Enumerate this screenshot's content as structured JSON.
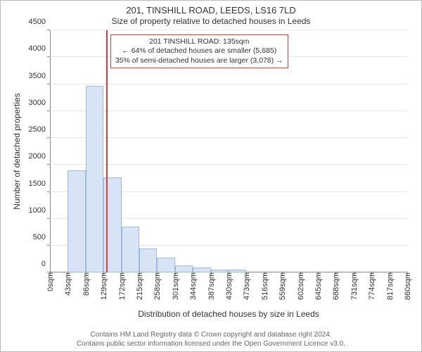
{
  "title": "201, TINSHILL ROAD, LEEDS, LS16 7LD",
  "subtitle": "Size of property relative to detached houses in Leeds",
  "chart": {
    "type": "histogram",
    "ylabel": "Number of detached properties",
    "xlabel": "Distribution of detached houses by size in Leeds",
    "y_max": 4500,
    "y_ticks": [
      0,
      500,
      1000,
      1500,
      2000,
      2500,
      3000,
      3500,
      4000,
      4500
    ],
    "bin_width_sqm": 43,
    "bins": [
      0,
      43,
      86,
      129,
      172,
      215,
      258,
      301,
      344,
      387,
      430,
      473,
      516,
      559,
      602,
      645,
      688,
      731,
      774,
      817,
      860
    ],
    "x_tick_labels": [
      "0sqm",
      "43sqm",
      "86sqm",
      "129sqm",
      "172sqm",
      "215sqm",
      "258sqm",
      "301sqm",
      "344sqm",
      "387sqm",
      "430sqm",
      "473sqm",
      "516sqm",
      "559sqm",
      "602sqm",
      "645sqm",
      "688sqm",
      "731sqm",
      "774sqm",
      "817sqm",
      "860sqm"
    ],
    "counts": [
      0,
      1900,
      3470,
      1770,
      850,
      450,
      280,
      130,
      100,
      60,
      50,
      0,
      0,
      0,
      0,
      0,
      0,
      0,
      0,
      0
    ],
    "marker_sqm": 135,
    "bar_fill": "#d6e4f5",
    "bar_border": "#9cb8da",
    "marker_color": "#d93a3a",
    "grid_color": "#e4e4e4",
    "axis_color": "#888888",
    "background": "#ffffff",
    "font_family": "Arial",
    "title_fontsize": 13,
    "label_fontsize": 12,
    "tick_fontsize": 11
  },
  "annotation": {
    "line1": "201 TINSHILL ROAD: 135sqm",
    "line2": "← 64% of detached houses are smaller (5,685)",
    "line3": "35% of semi-detached houses are larger (3,078) →",
    "border_color": "#d93a3a"
  },
  "footer": {
    "line1": "Contains HM Land Registry data © Crown copyright and database right 2024.",
    "line2": "Contains public sector information licensed under the Open Government Licence v3.0."
  }
}
